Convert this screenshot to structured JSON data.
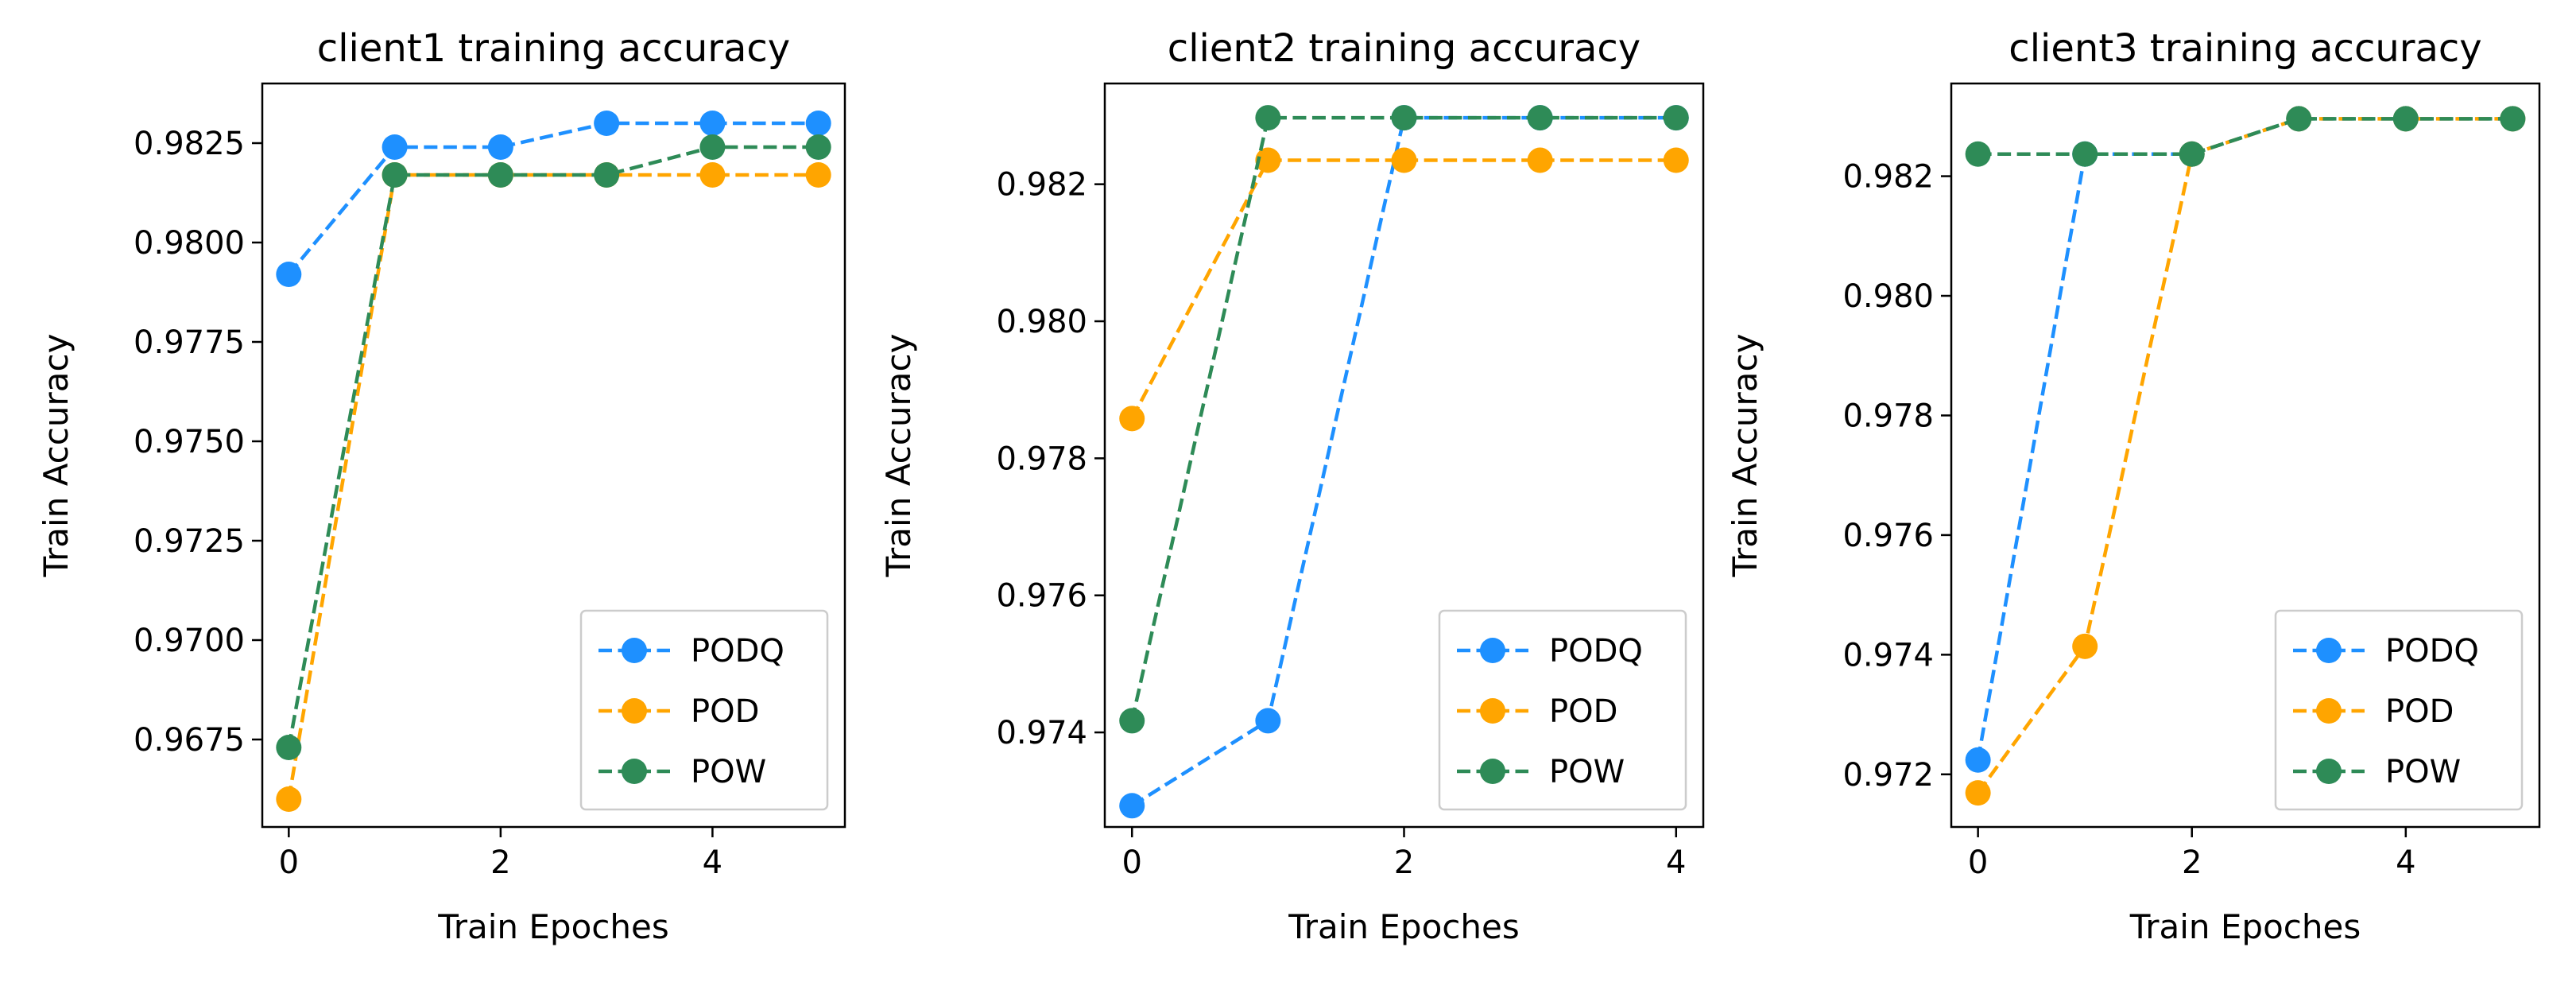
{
  "chart_data": [
    {
      "type": "line",
      "title": "client1 training accuracy",
      "xlabel": "Train Epoches",
      "ylabel": "Train Accuracy",
      "x": [
        0,
        1,
        2,
        3,
        4,
        5
      ],
      "xlim": [
        -0.25,
        5.25
      ],
      "ylim": [
        0.9653,
        0.984
      ],
      "xticks": [
        0,
        2,
        4
      ],
      "xtick_labels": [
        "0",
        "2",
        "4"
      ],
      "yticks": [
        0.9675,
        0.97,
        0.9725,
        0.975,
        0.9775,
        0.98,
        0.9825
      ],
      "ytick_labels": [
        "0.9675",
        "0.9700",
        "0.9725",
        "0.9750",
        "0.9775",
        "0.9800",
        "0.9825"
      ],
      "legend_position": "bottom-right",
      "series": [
        {
          "name": "PODQ",
          "color": "#1e90ff",
          "values": [
            0.9792,
            0.9824,
            0.9824,
            0.983,
            0.983,
            0.983
          ]
        },
        {
          "name": "POD",
          "color": "#ffa500",
          "values": [
            0.966,
            0.9817,
            0.9817,
            0.9817,
            0.9817,
            0.9817
          ]
        },
        {
          "name": "POW",
          "color": "#2e8b57",
          "values": [
            0.9673,
            0.9817,
            0.9817,
            0.9817,
            0.9824,
            0.9824
          ]
        }
      ]
    },
    {
      "type": "line",
      "title": "client2 training accuracy",
      "xlabel": "Train Epoches",
      "ylabel": "Train Accuracy",
      "x": [
        0,
        1,
        2,
        3,
        4
      ],
      "xlim": [
        -0.2,
        4.2
      ],
      "ylim": [
        0.97262,
        0.98347
      ],
      "xticks": [
        0,
        2,
        4
      ],
      "xtick_labels": [
        "0",
        "2",
        "4"
      ],
      "yticks": [
        0.974,
        0.976,
        0.978,
        0.98,
        0.982
      ],
      "ytick_labels": [
        "0.974",
        "0.976",
        "0.978",
        "0.980",
        "0.982"
      ],
      "legend_position": "bottom-right",
      "series": [
        {
          "name": "PODQ",
          "color": "#1e90ff",
          "values": [
            0.97293,
            0.97417,
            0.98297,
            0.98297,
            0.98297
          ]
        },
        {
          "name": "POD",
          "color": "#ffa500",
          "values": [
            0.97858,
            0.98235,
            0.98235,
            0.98235,
            0.98235
          ]
        },
        {
          "name": "POW",
          "color": "#2e8b57",
          "values": [
            0.97417,
            0.98297,
            0.98297,
            0.98297,
            0.98297
          ]
        }
      ]
    },
    {
      "type": "line",
      "title": "client3 training accuracy",
      "xlabel": "Train Epoches",
      "ylabel": "Train Accuracy",
      "x": [
        0,
        1,
        2,
        3,
        4,
        5
      ],
      "xlim": [
        -0.25,
        5.25
      ],
      "ylim": [
        0.97112,
        0.98355
      ],
      "xticks": [
        0,
        2,
        4
      ],
      "xtick_labels": [
        "0",
        "2",
        "4"
      ],
      "yticks": [
        0.972,
        0.974,
        0.976,
        0.978,
        0.98,
        0.982
      ],
      "ytick_labels": [
        "0.972",
        "0.974",
        "0.976",
        "0.978",
        "0.980",
        "0.982"
      ],
      "legend_position": "bottom-right",
      "series": [
        {
          "name": "PODQ",
          "color": "#1e90ff",
          "values": [
            0.97224,
            0.98237,
            0.98237,
            0.98296,
            0.98296,
            0.98296
          ]
        },
        {
          "name": "POD",
          "color": "#ffa500",
          "values": [
            0.97169,
            0.97414,
            0.98237,
            0.98296,
            0.98296,
            0.98296
          ]
        },
        {
          "name": "POW",
          "color": "#2e8b57",
          "values": [
            0.98237,
            0.98237,
            0.98237,
            0.98296,
            0.98296,
            0.98296
          ]
        }
      ]
    }
  ]
}
